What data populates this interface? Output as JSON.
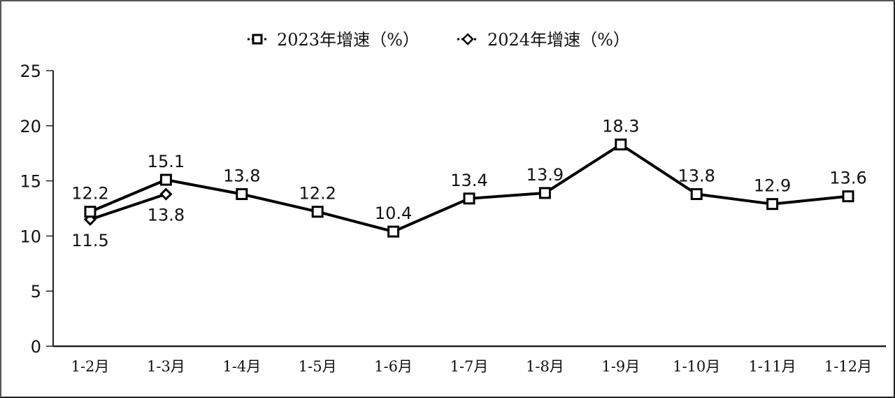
{
  "chart_data": {
    "type": "line",
    "title": "",
    "xlabel": "",
    "ylabel": "",
    "ylim": [
      0,
      25
    ],
    "yticks": [
      0,
      5,
      10,
      15,
      20,
      25
    ],
    "grid": false,
    "legend_position": "top-center",
    "categories": [
      "1-2月",
      "1-3月",
      "1-4月",
      "1-5月",
      "1-6月",
      "1-7月",
      "1-8月",
      "1-9月",
      "1-10月",
      "1-11月",
      "1-12月"
    ],
    "series": [
      {
        "name": "2023年增速（%）",
        "marker": "square",
        "color": "#000000",
        "values": [
          12.2,
          15.1,
          13.8,
          12.2,
          10.4,
          13.4,
          13.9,
          18.3,
          13.8,
          12.9,
          13.6
        ],
        "label_position": [
          "above",
          "above",
          "above",
          "above",
          "above",
          "above",
          "above",
          "above",
          "above",
          "above",
          "above"
        ]
      },
      {
        "name": "2024年增速（%）",
        "marker": "diamond",
        "color": "#000000",
        "values": [
          11.5,
          13.8,
          null,
          null,
          null,
          null,
          null,
          null,
          null,
          null,
          null
        ],
        "label_position": [
          "below",
          "below"
        ]
      }
    ]
  },
  "legend": {
    "items": [
      {
        "label": "2023年增速（%）",
        "icon": "square-marker-icon"
      },
      {
        "label": "2024年增速（%）",
        "icon": "diamond-marker-icon"
      }
    ]
  }
}
